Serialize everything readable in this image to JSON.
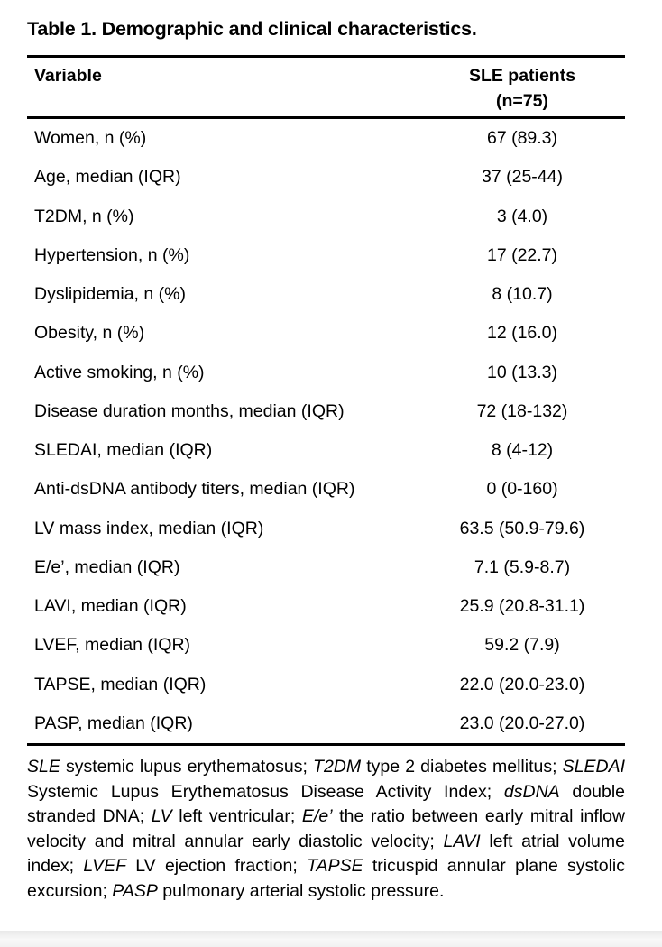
{
  "title": "Table 1. Demographic and clinical characteristics.",
  "colors": {
    "text": "#000000",
    "background": "#ffffff",
    "table_rules": "#000000",
    "page_bottom_edge": "#e9e9e9"
  },
  "table": {
    "header": {
      "variable": "Variable",
      "patients_line1": "SLE patients",
      "patients_line2": "(n=75)"
    },
    "rows": [
      {
        "label": "Women, n (%)",
        "value": "67 (89.3)"
      },
      {
        "label": "Age, median (IQR)",
        "value": "37 (25-44)"
      },
      {
        "label": "T2DM, n (%)",
        "value": "3 (4.0)"
      },
      {
        "label": "Hypertension, n (%)",
        "value": "17 (22.7)"
      },
      {
        "label": "Dyslipidemia, n (%)",
        "value": "8 (10.7)"
      },
      {
        "label": "Obesity, n (%)",
        "value": "12 (16.0)"
      },
      {
        "label": "Active smoking, n (%)",
        "value": "10 (13.3)"
      },
      {
        "label": "Disease duration months, median (IQR)",
        "value": "72 (18-132)"
      },
      {
        "label": "SLEDAI, median (IQR)",
        "value": "8 (4-12)"
      },
      {
        "label": "Anti-dsDNA antibody titers, median (IQR)",
        "value": "0 (0-160)"
      },
      {
        "label": "LV mass index, median (IQR)",
        "value": "63.5 (50.9-79.6)"
      },
      {
        "label": "E/e’, median (IQR)",
        "value": "7.1 (5.9-8.7)"
      },
      {
        "label": "LAVI, median (IQR)",
        "value": "25.9 (20.8-31.1)"
      },
      {
        "label": "LVEF, median (IQR)",
        "value": "59.2 (7.9)"
      },
      {
        "label": "TAPSE, median (IQR)",
        "value": "22.0 (20.0-23.0)"
      },
      {
        "label": "PASP, median (IQR)",
        "value": "23.0 (20.0-27.0)"
      }
    ]
  },
  "footnote": {
    "segments": [
      {
        "text": "SLE",
        "italic": true
      },
      {
        "text": " systemic lupus erythematosus; ",
        "italic": false
      },
      {
        "text": "T2DM",
        "italic": true
      },
      {
        "text": " type 2 diabetes mellitus; ",
        "italic": false
      },
      {
        "text": "SLEDAI",
        "italic": true
      },
      {
        "text": " Systemic Lupus Erythematosus Disease Activity Index; ",
        "italic": false
      },
      {
        "text": "dsDNA",
        "italic": true
      },
      {
        "text": " double stranded DNA; ",
        "italic": false
      },
      {
        "text": "LV",
        "italic": true
      },
      {
        "text": " left ventricular; ",
        "italic": false
      },
      {
        "text": "E/e’",
        "italic": true
      },
      {
        "text": " the ratio between early mitral inflow velocity and mitral annular early diastolic velocity; ",
        "italic": false
      },
      {
        "text": "LAVI",
        "italic": true
      },
      {
        "text": " left atrial volume index; ",
        "italic": false
      },
      {
        "text": "LVEF",
        "italic": true
      },
      {
        "text": " LV ejection fraction; ",
        "italic": false
      },
      {
        "text": "TAPSE",
        "italic": true
      },
      {
        "text": " tricuspid annular plane systolic excursion; ",
        "italic": false
      },
      {
        "text": "PASP",
        "italic": true
      },
      {
        "text": " pulmonary arterial systolic pressure.",
        "italic": false
      }
    ]
  }
}
